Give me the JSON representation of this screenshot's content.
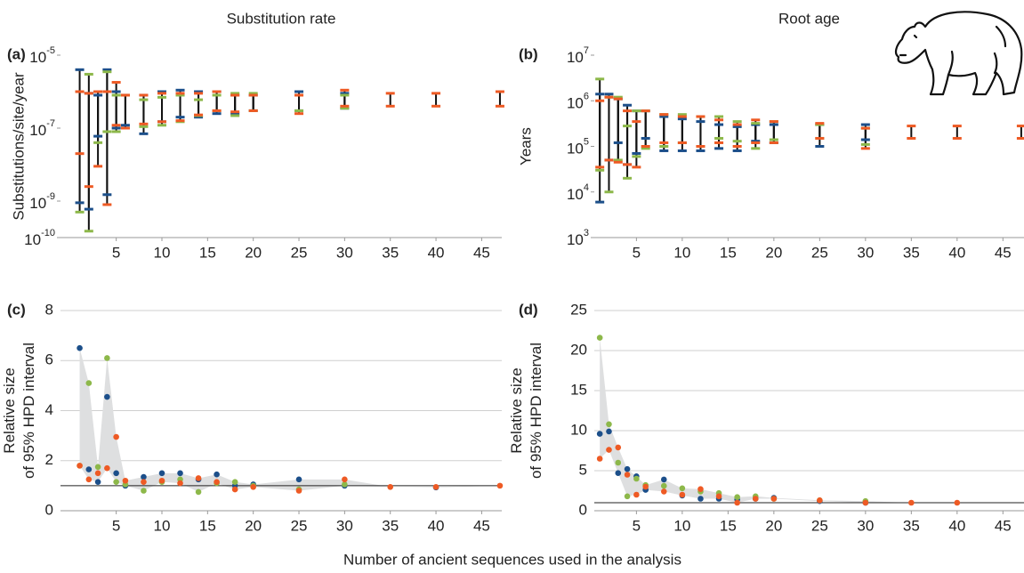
{
  "xlabel": "Number of ancient sequences used in the analysis",
  "chart_data": [
    {
      "type": "errorbar",
      "panel_label": "(a)",
      "title": "Substitution rate",
      "ylabel": "Substitutions/site/year",
      "log": true,
      "grid": false,
      "x": [
        1,
        2,
        3,
        4,
        5,
        6,
        8,
        10,
        12,
        14,
        16,
        18,
        20,
        25,
        30,
        35,
        40,
        47
      ],
      "xlim": [
        -1.1,
        47.2
      ],
      "xticks": [
        5,
        10,
        15,
        20,
        25,
        30,
        35,
        40,
        45
      ],
      "ylim": [
        1e-10,
        1e-05
      ],
      "yticks": [
        {
          "value": 1e-05,
          "label": "10",
          "superscript": "-5"
        },
        {
          "value": 1e-07,
          "label": "10",
          "superscript": "-7"
        },
        {
          "value": 1e-09,
          "label": "10",
          "superscript": "-9"
        },
        {
          "value": 1e-10,
          "label": "10",
          "superscript": "-10"
        }
      ],
      "series": [
        {
          "color": "#1c4f8a",
          "low": [
            9e-10,
            6e-10,
            6e-08,
            1.5e-09,
            1e-07,
            1.2e-07,
            7e-08,
            1.5e-07,
            2e-07,
            2e-07,
            2.5e-07,
            2.5e-07,
            3e-07,
            3e-07,
            3.5e-07,
            null,
            null,
            null
          ],
          "high": [
            4e-06,
            9e-07,
            8e-07,
            4e-06,
            1e-06,
            8e-07,
            8e-07,
            1e-06,
            1.1e-06,
            1e-06,
            1e-06,
            8e-07,
            8e-07,
            1e-06,
            9e-07,
            null,
            null,
            null
          ]
        },
        {
          "color": "#8db84a",
          "low": [
            5e-10,
            1.5e-10,
            4e-08,
            8e-08,
            8e-08,
            1e-07,
            1.1e-07,
            1.2e-07,
            1.5e-07,
            2.2e-07,
            3e-07,
            2.2e-07,
            3e-07,
            3e-07,
            3.5e-07,
            null,
            null,
            null
          ],
          "high": [
            1e-06,
            3e-06,
            1e-06,
            3.5e-06,
            8e-07,
            8e-07,
            6e-07,
            7e-07,
            8e-07,
            6e-07,
            8e-07,
            9e-07,
            9e-07,
            8e-07,
            8e-07,
            null,
            null,
            null
          ]
        },
        {
          "color": "#ee5a24",
          "low": [
            2e-08,
            2.5e-09,
            9e-09,
            8e-10,
            1.2e-07,
            1e-07,
            1.3e-07,
            1.5e-07,
            1.6e-07,
            2.3e-07,
            3e-07,
            2.8e-07,
            3e-07,
            2.5e-07,
            4e-07,
            4e-07,
            4e-07,
            4e-07
          ],
          "high": [
            1e-06,
            9e-07,
            1e-06,
            1e-06,
            1.8e-06,
            8e-07,
            8e-07,
            9e-07,
            9e-07,
            9e-07,
            1e-06,
            8e-07,
            8e-07,
            8e-07,
            1.1e-06,
            9e-07,
            9e-07,
            1e-06
          ]
        }
      ]
    },
    {
      "type": "errorbar",
      "panel_label": "(b)",
      "title": "Root age",
      "ylabel": "Years",
      "log": true,
      "grid": false,
      "x": [
        1,
        2,
        3,
        4,
        5,
        6,
        8,
        10,
        12,
        14,
        16,
        18,
        20,
        25,
        30,
        35,
        40,
        47
      ],
      "xlim": [
        0.4,
        47.3
      ],
      "xticks": [
        5,
        10,
        15,
        20,
        25,
        30,
        35,
        40,
        45
      ],
      "ylim": [
        1000.0,
        10000000.0
      ],
      "yticks": [
        {
          "value": 10000000.0,
          "label": "10",
          "superscript": "7"
        },
        {
          "value": 1000000.0,
          "label": "10",
          "superscript": "6"
        },
        {
          "value": 100000.0,
          "label": "10",
          "superscript": "5"
        },
        {
          "value": 10000.0,
          "label": "10",
          "superscript": "4"
        },
        {
          "value": 1000.0,
          "label": "10",
          "superscript": "3"
        }
      ],
      "series": [
        {
          "color": "#1c4f8a",
          "low": [
            6000.0,
            50000.0,
            120000.0,
            40000.0,
            70000.0,
            150000.0,
            80000.0,
            80000.0,
            80000.0,
            90000.0,
            80000.0,
            130000.0,
            120000.0,
            100000.0,
            140000.0,
            null,
            null,
            null
          ],
          "high": [
            1400000.0,
            1400000.0,
            1100000.0,
            800000.0,
            600000.0,
            600000.0,
            450000.0,
            400000.0,
            350000.0,
            300000.0,
            270000.0,
            300000.0,
            300000.0,
            300000.0,
            300000.0,
            null,
            null,
            null
          ]
        },
        {
          "color": "#8db84a",
          "low": [
            30000.0,
            10000.0,
            50000.0,
            20000.0,
            60000.0,
            90000.0,
            100000.0,
            120000.0,
            100000.0,
            150000.0,
            130000.0,
            90000.0,
            140000.0,
            150000.0,
            110000.0,
            null,
            null,
            null
          ],
          "high": [
            3000000.0,
            1200000.0,
            1200000.0,
            280000.0,
            600000.0,
            600000.0,
            500000.0,
            500000.0,
            450000.0,
            450000.0,
            350000.0,
            320000.0,
            350000.0,
            300000.0,
            250000.0,
            null,
            null,
            null
          ]
        },
        {
          "color": "#ee5a24",
          "low": [
            35000.0,
            50000.0,
            45000.0,
            40000.0,
            35000.0,
            100000.0,
            120000.0,
            120000.0,
            100000.0,
            120000.0,
            100000.0,
            120000.0,
            120000.0,
            150000.0,
            90000.0,
            150000.0,
            150000.0,
            150000.0
          ],
          "high": [
            1000000.0,
            1200000.0,
            1100000.0,
            600000.0,
            350000.0,
            600000.0,
            500000.0,
            450000.0,
            450000.0,
            380000.0,
            300000.0,
            380000.0,
            350000.0,
            320000.0,
            250000.0,
            280000.0,
            280000.0,
            280000.0
          ]
        }
      ]
    },
    {
      "type": "scatter",
      "panel_label": "(c)",
      "ylabel": [
        "Relative size",
        "of 95% HPD interval"
      ],
      "grid": true,
      "reference_line": 1,
      "x": [
        1,
        2,
        3,
        4,
        5,
        6,
        8,
        10,
        12,
        14,
        16,
        18,
        20,
        25,
        30,
        35,
        40,
        47
      ],
      "xlim": [
        -1.1,
        47.2
      ],
      "xticks": [
        5,
        10,
        15,
        20,
        25,
        30,
        35,
        40,
        45
      ],
      "ylim": [
        0,
        8
      ],
      "yticks": [
        0,
        2,
        4,
        6,
        8
      ],
      "series": [
        {
          "color": "#1c4f8a",
          "values": [
            6.5,
            1.65,
            1.15,
            4.55,
            1.5,
            1.0,
            1.35,
            1.5,
            1.5,
            1.25,
            1.45,
            1.0,
            1.05,
            1.25,
            1.0,
            null,
            0.93,
            null
          ]
        },
        {
          "color": "#8db84a",
          "values": [
            1.8,
            5.1,
            1.75,
            6.1,
            1.15,
            1.05,
            0.8,
            1.15,
            1.25,
            0.75,
            1.1,
            1.15,
            1.0,
            0.85,
            1.05,
            null,
            null,
            null
          ]
        },
        {
          "color": "#ee5a24",
          "values": [
            1.8,
            1.25,
            1.5,
            1.7,
            2.95,
            1.2,
            1.15,
            1.2,
            1.1,
            1.3,
            1.15,
            0.85,
            0.95,
            0.8,
            1.25,
            0.95,
            0.95,
            1.0
          ]
        }
      ]
    },
    {
      "type": "scatter",
      "panel_label": "(d)",
      "ylabel": [
        "Relative size",
        "of 95% HPD interval"
      ],
      "grid": true,
      "reference_line": 1,
      "x": [
        1,
        2,
        3,
        4,
        5,
        6,
        8,
        10,
        12,
        14,
        16,
        18,
        20,
        25,
        30,
        35,
        40,
        47
      ],
      "xlim": [
        0.4,
        47.3
      ],
      "xticks": [
        5,
        10,
        15,
        20,
        25,
        30,
        35,
        40,
        45
      ],
      "ylim": [
        0,
        25
      ],
      "yticks": [
        0,
        5,
        10,
        15,
        20,
        25
      ],
      "series": [
        {
          "color": "#1c4f8a",
          "values": [
            9.6,
            9.9,
            4.7,
            5.2,
            4.3,
            2.6,
            3.9,
            1.9,
            1.5,
            1.5,
            1.4,
            1.5,
            1.6,
            1.2,
            1.0,
            null,
            null,
            null
          ]
        },
        {
          "color": "#8db84a",
          "values": [
            21.6,
            10.8,
            6.0,
            1.8,
            4.0,
            3.2,
            3.1,
            2.8,
            2.4,
            2.2,
            1.7,
            1.8,
            1.5,
            1.3,
            1.2,
            null,
            null,
            null
          ]
        },
        {
          "color": "#ee5a24",
          "values": [
            6.5,
            7.6,
            7.9,
            4.5,
            2.0,
            3.0,
            2.4,
            2.0,
            2.7,
            1.8,
            1.0,
            1.5,
            1.5,
            1.3,
            1.0,
            1.0,
            1.0,
            null
          ]
        }
      ]
    }
  ]
}
